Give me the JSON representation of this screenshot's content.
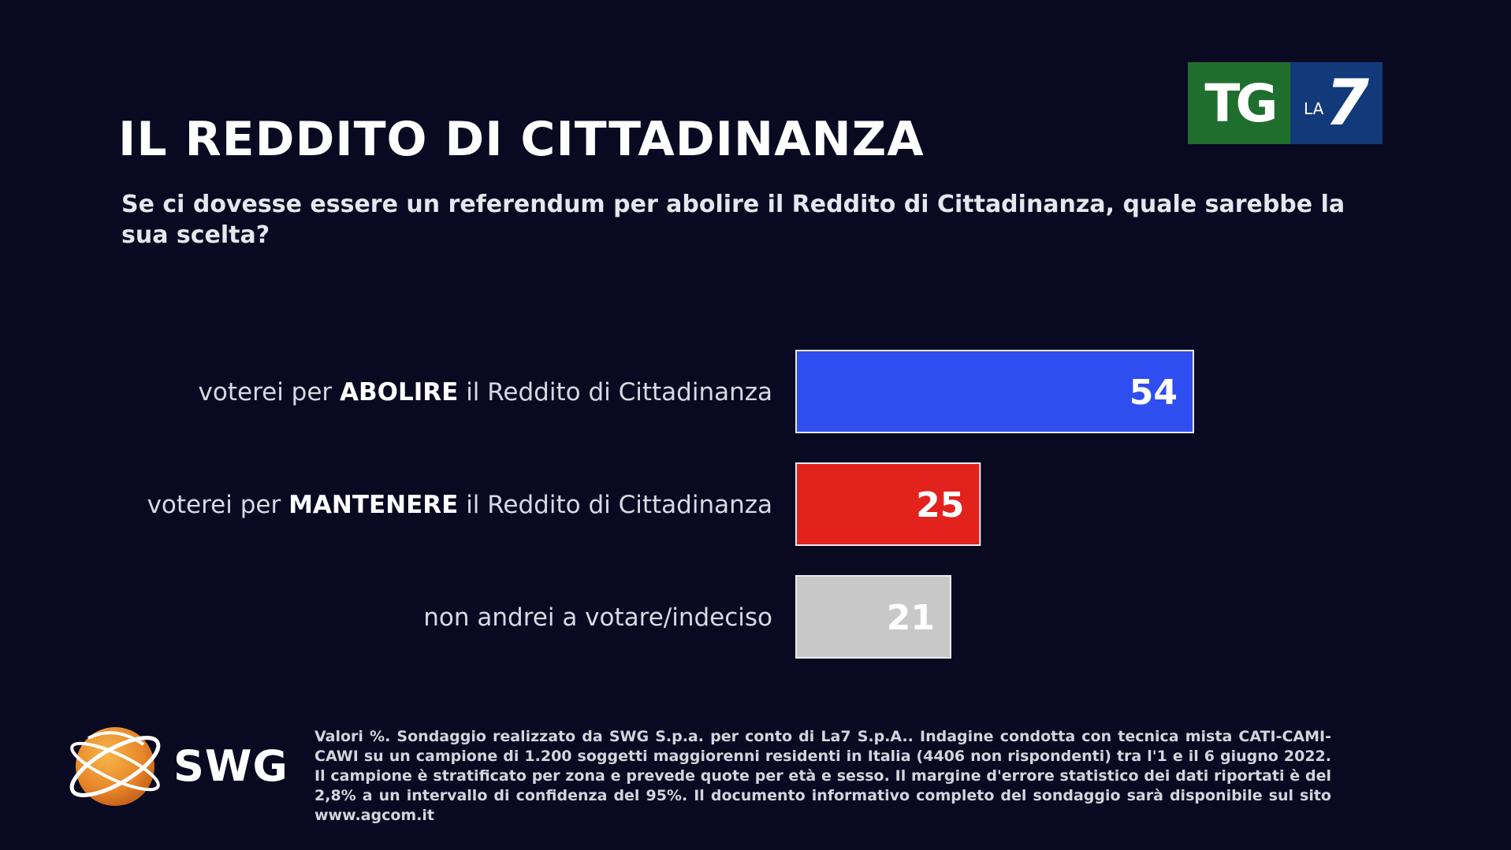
{
  "header": {
    "title": "IL REDDITO DI CITTADINANZA",
    "subtitle": "Se ci dovesse essere un referendum per abolire il Reddito di Cittadinanza, quale sarebbe la sua scelta?"
  },
  "logo": {
    "tg": "TG",
    "la": "LA",
    "seven": "7"
  },
  "chart_data": {
    "type": "bar",
    "orientation": "horizontal",
    "categories": [
      {
        "prefix": "voterei per ",
        "bold": "ABOLIRE",
        "suffix": " il Reddito di Cittadinanza"
      },
      {
        "prefix": "voterei per ",
        "bold": "MANTENERE",
        "suffix": " il Reddito di Cittadinanza"
      },
      {
        "prefix": "non andrei a votare/indeciso",
        "bold": "",
        "suffix": ""
      }
    ],
    "values": [
      54,
      25,
      21
    ],
    "value_labels": [
      "54",
      "25",
      "21"
    ],
    "colors": [
      "#2f4ef0",
      "#e2221c",
      "#c8c8c8"
    ],
    "xlim": [
      0,
      100
    ],
    "grid": false,
    "legend": "none"
  },
  "footer": {
    "brand": "SWG",
    "note": "Valori %. Sondaggio realizzato da SWG S.p.a. per conto di La7 S.p.A.. Indagine condotta con tecnica mista CATI-CAMI-CAWI su un campione di 1.200 soggetti maggiorenni residenti in Italia (4406 non rispondenti) tra l'1 e il 6 giugno 2022. Il campione è stratificato per zona e prevede quote per età e sesso. Il margine d'errore statistico dei dati riportati è del 2,8% a un intervallo di confidenza del 95%. Il documento informativo completo del sondaggio sarà disponibile sul sito www.agcom.it"
  }
}
